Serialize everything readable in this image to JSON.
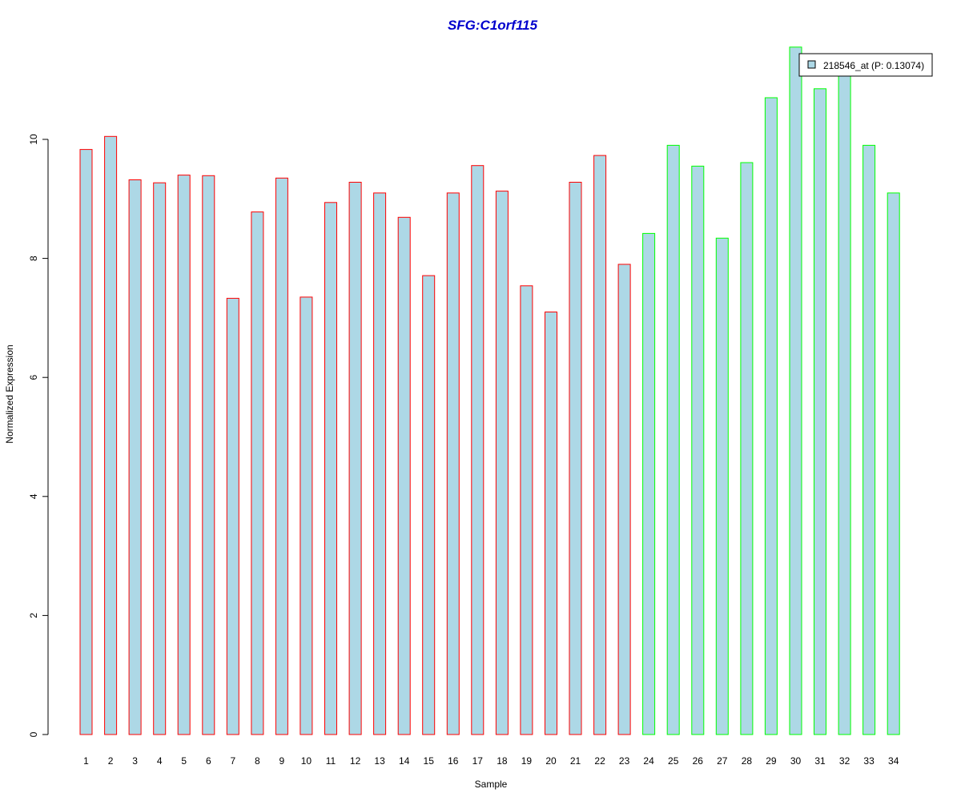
{
  "chart_data": {
    "type": "bar",
    "title": "SFG:C1orf115",
    "xlabel": "Sample",
    "ylabel": "Normalized Expression",
    "categories": [
      "1",
      "2",
      "3",
      "4",
      "5",
      "6",
      "7",
      "8",
      "9",
      "10",
      "11",
      "12",
      "13",
      "14",
      "15",
      "16",
      "17",
      "18",
      "19",
      "20",
      "21",
      "22",
      "23",
      "24",
      "25",
      "26",
      "27",
      "28",
      "29",
      "30",
      "31",
      "32",
      "33",
      "34"
    ],
    "series": [
      {
        "name": "218546_at (P: 0.13074)",
        "values": [
          9.83,
          10.05,
          9.32,
          9.27,
          9.4,
          9.39,
          7.33,
          8.78,
          9.35,
          7.35,
          8.94,
          9.28,
          9.1,
          8.69,
          7.71,
          9.1,
          9.56,
          9.13,
          7.54,
          7.1,
          9.28,
          9.73,
          7.9,
          8.42,
          9.9,
          9.55,
          8.34,
          9.61,
          10.7,
          11.55,
          10.85,
          11.15,
          9.9,
          9.1
        ]
      }
    ],
    "group_a_count": 23,
    "ylim": [
      0,
      11.8
    ],
    "yticks": [
      "0",
      "2",
      "4",
      "6",
      "8",
      "10"
    ],
    "grid": false,
    "legend_position": "top-right",
    "colors": {
      "bar_fill": "#add8e6",
      "group_a_border": "#ff0000",
      "group_b_border": "#00ff00",
      "title": "#0000cd",
      "axis": "#000000"
    }
  }
}
